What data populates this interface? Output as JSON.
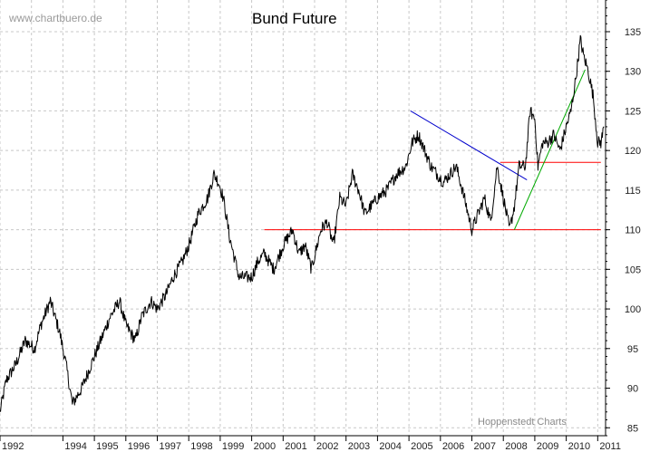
{
  "chart_data": {
    "type": "line",
    "title": "Bund Future",
    "watermark": "www.chartbuero.de",
    "source": "Hoppenstedt Charts",
    "xlim": [
      1992.0,
      2011.25
    ],
    "ylim": [
      84,
      139
    ],
    "grid": true,
    "y_axis_side": "right",
    "x_tick_labels": [
      "1992",
      "1994",
      "1995",
      "1996",
      "1997",
      "1998",
      "1999",
      "2000",
      "2001",
      "2002",
      "2003",
      "2004",
      "2005",
      "2006",
      "2007",
      "2008",
      "2009",
      "2010",
      "2011"
    ],
    "y_tick_labels": [
      "85",
      "90",
      "95",
      "100",
      "105",
      "110",
      "115",
      "120",
      "125",
      "130",
      "135"
    ],
    "series": [
      {
        "color": "#000000",
        "x": [
          1992.0,
          1992.2,
          1992.5,
          1992.8,
          1993.1,
          1993.3,
          1993.6,
          1993.9,
          1994.1,
          1994.3,
          1994.6,
          1994.9,
          1995.2,
          1995.5,
          1995.8,
          1996.0,
          1996.3,
          1996.5,
          1996.8,
          1997.0,
          1997.3,
          1997.5,
          1997.8,
          1998.0,
          1998.3,
          1998.6,
          1998.8,
          1998.95,
          1999.1,
          1999.3,
          1999.6,
          1999.8,
          2000.0,
          2000.2,
          2000.4,
          2000.7,
          2001.0,
          2001.3,
          2001.5,
          2001.7,
          2001.9,
          2002.2,
          2002.4,
          2002.6,
          2002.8,
          2003.0,
          2003.2,
          2003.4,
          2003.6,
          2003.8,
          2004.0,
          2004.3,
          2004.6,
          2004.9,
          2005.1,
          2005.3,
          2005.5,
          2005.7,
          2005.9,
          2006.1,
          2006.3,
          2006.5,
          2006.7,
          2007.0,
          2007.2,
          2007.4,
          2007.6,
          2007.8,
          2008.0,
          2008.2,
          2008.35,
          2008.5,
          2008.7,
          2008.85,
          2009.0,
          2009.1,
          2009.25,
          2009.4,
          2009.6,
          2009.8,
          2010.0,
          2010.15,
          2010.3,
          2010.45,
          2010.55,
          2010.7,
          2010.85,
          2011.0,
          2011.1,
          2011.2
        ],
        "values": [
          87,
          91,
          93,
          96,
          95,
          98,
          101,
          97,
          93,
          88,
          90,
          93,
          96,
          99,
          101,
          98,
          96,
          99,
          101,
          100,
          102,
          104,
          106,
          108,
          112,
          114,
          117,
          116,
          114,
          109,
          104,
          104,
          104,
          106,
          107,
          105,
          108,
          110,
          107,
          108,
          105,
          110,
          111,
          108,
          114,
          113,
          117,
          115,
          112,
          113,
          114,
          115,
          117,
          118,
          121,
          122,
          120,
          118,
          117,
          116,
          117,
          118,
          115,
          110,
          112,
          114,
          111,
          118,
          114,
          110,
          113,
          118,
          118,
          125,
          124,
          118,
          121,
          121,
          122,
          120,
          123,
          125,
          129,
          134,
          132,
          130,
          127,
          121,
          121,
          123
        ]
      }
    ],
    "reference_lines": [
      {
        "color": "#ff0000",
        "x": [
          2000.4,
          2011.1
        ],
        "y": [
          110,
          110
        ]
      },
      {
        "color": "#ff0000",
        "x": [
          2007.9,
          2011.1
        ],
        "y": [
          118.5,
          118.5
        ]
      },
      {
        "color": "#0000cc",
        "x": [
          2005.05,
          2008.75
        ],
        "y": [
          125,
          116.3
        ]
      },
      {
        "color": "#00aa00",
        "x": [
          2008.35,
          2010.6
        ],
        "y": [
          110,
          130.2
        ]
      }
    ]
  }
}
